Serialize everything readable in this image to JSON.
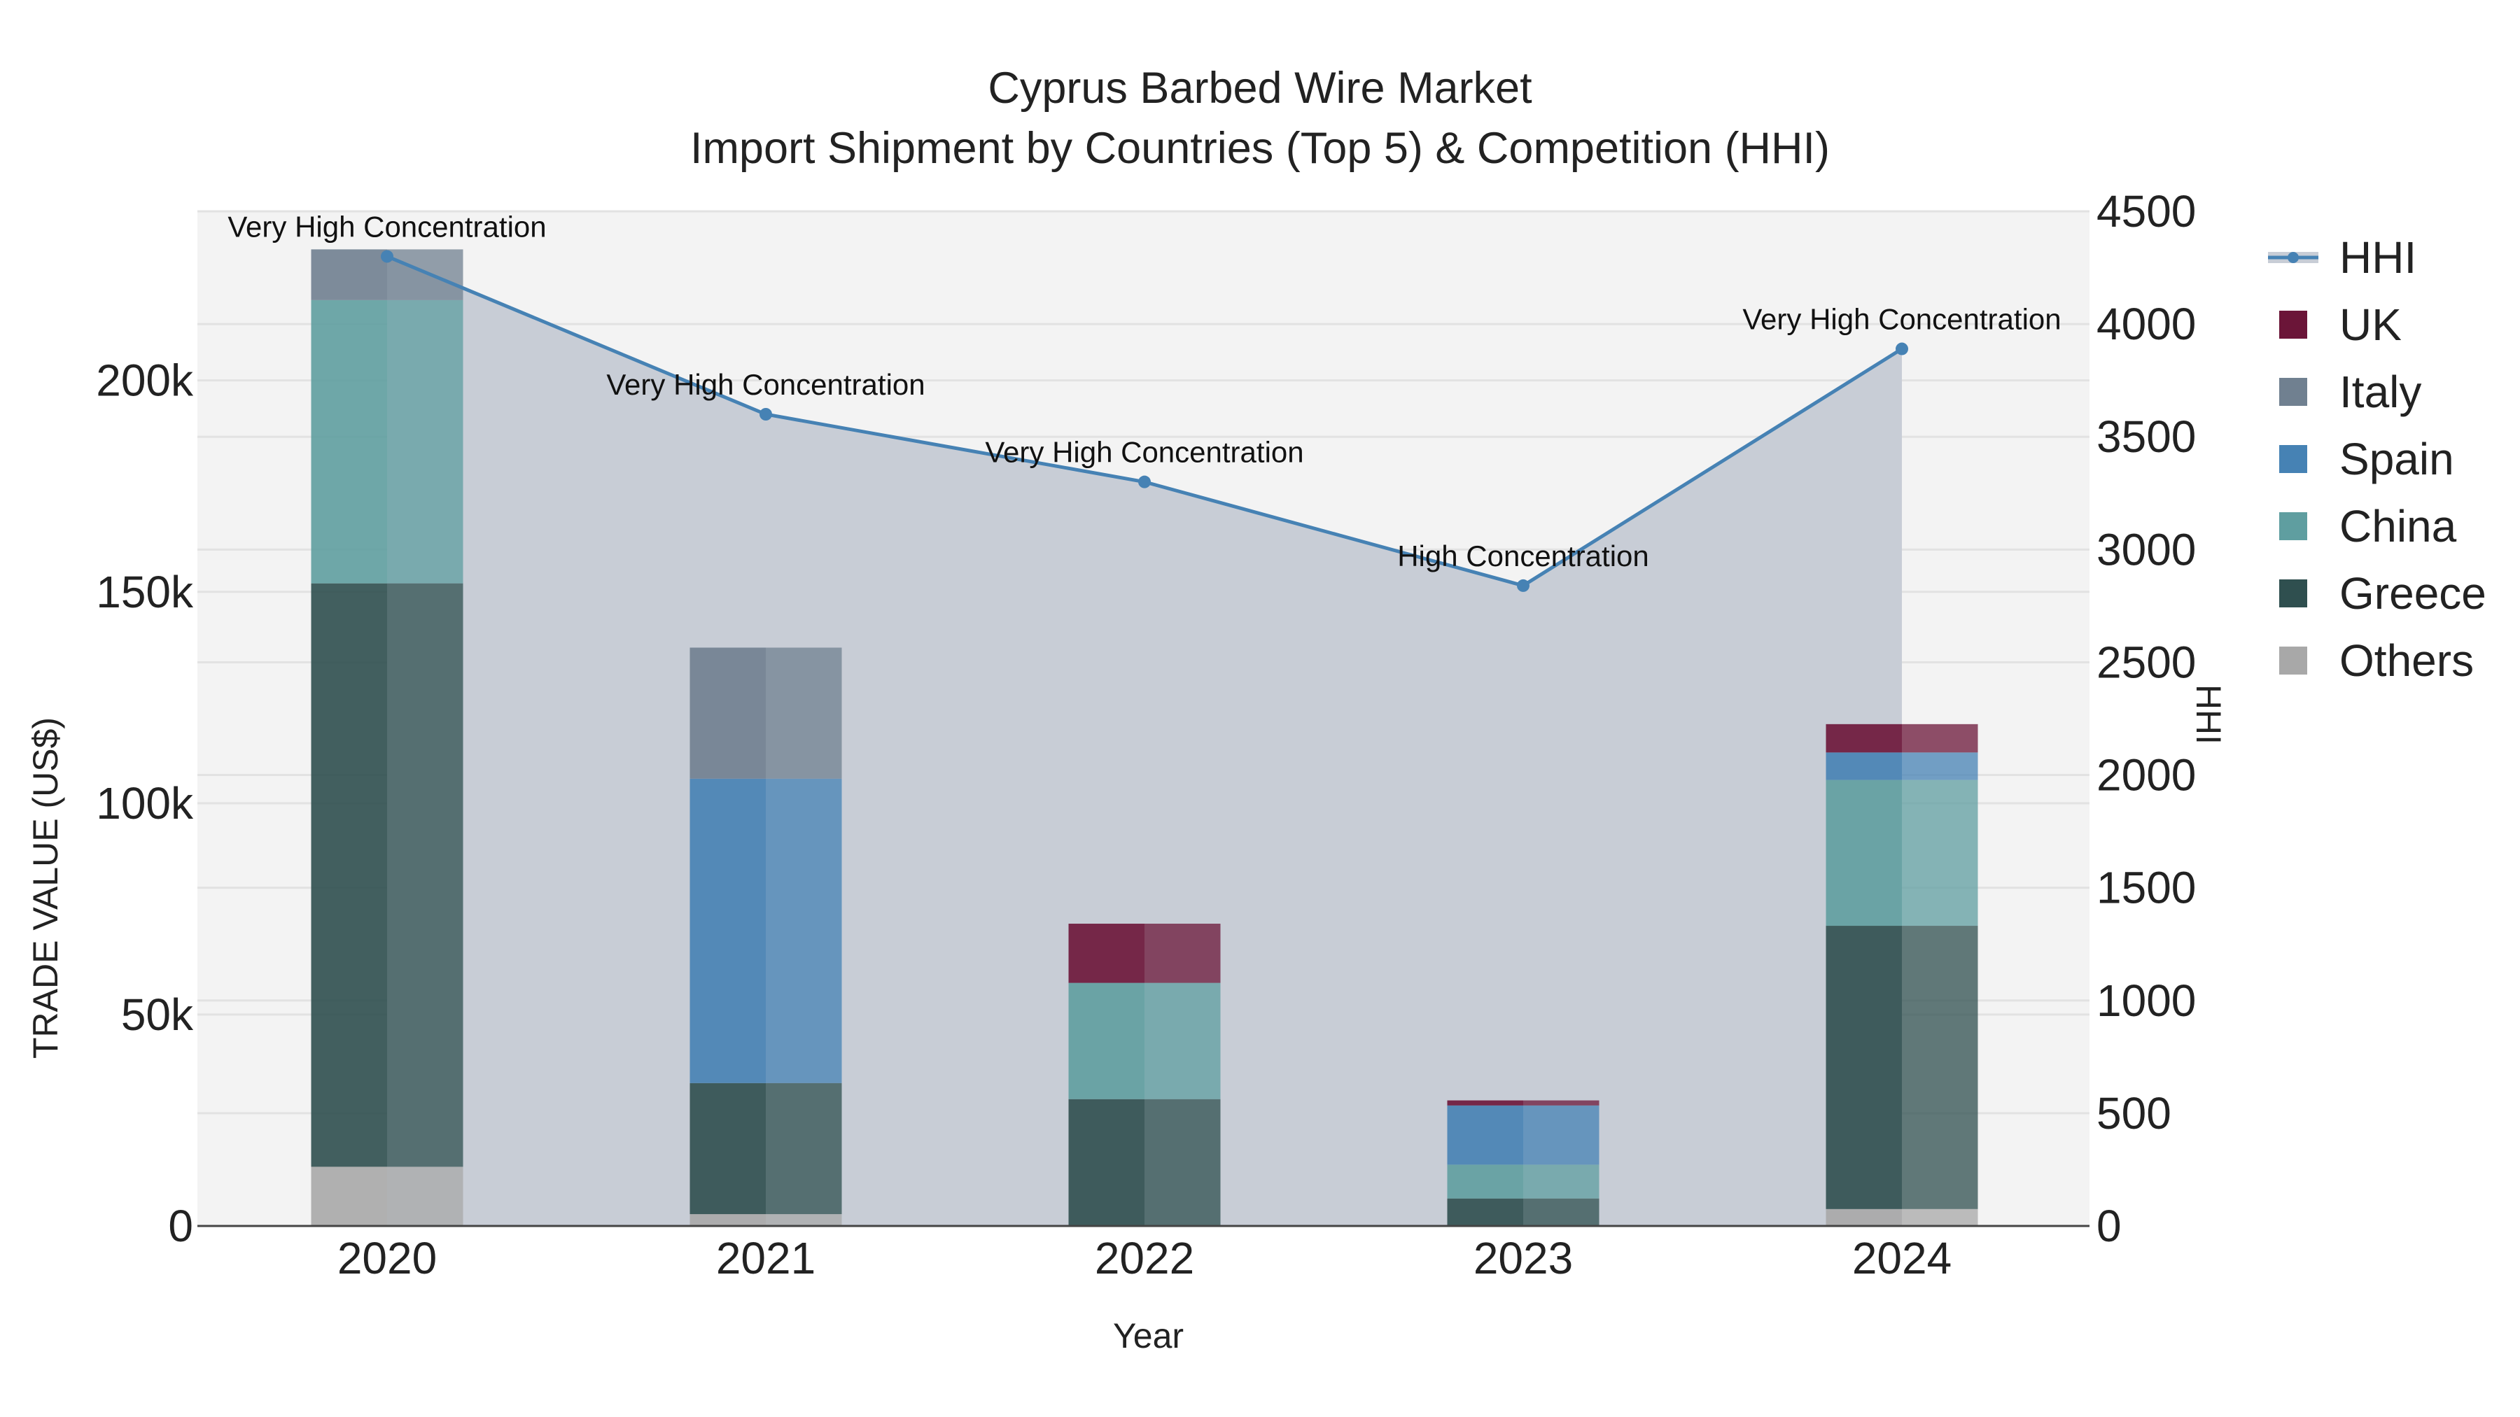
{
  "chart_data": {
    "type": "bar",
    "title": "Cyprus Barbed Wire Market",
    "subtitle": "Import Shipment by Countries (Top 5) & Competition (HHI)",
    "xlabel": "Year",
    "ylabel": "TRADE VALUE (US$)",
    "y2label": "HHI",
    "categories": [
      "2020",
      "2021",
      "2022",
      "2023",
      "2024"
    ],
    "ylim": [
      0,
      240000
    ],
    "y2lim": [
      0,
      4500
    ],
    "yticks": [
      "0",
      "50k",
      "100k",
      "150k",
      "200k"
    ],
    "y2ticks": [
      "0",
      "500",
      "1000",
      "1500",
      "2000",
      "2500",
      "3000",
      "3500",
      "4000",
      "4500"
    ],
    "stacked": true,
    "grid": true,
    "legend_position": "right",
    "series": [
      {
        "name": "Others",
        "color": "#A8A8A8",
        "values": [
          14000,
          2800,
          0,
          0,
          4000
        ]
      },
      {
        "name": "Greece",
        "color": "#2F4F4F",
        "values": [
          138000,
          31000,
          30000,
          6500,
          67000
        ]
      },
      {
        "name": "China",
        "color": "#5F9EA0",
        "values": [
          67000,
          0,
          27500,
          8000,
          34500
        ]
      },
      {
        "name": "Spain",
        "color": "#4682B4",
        "values": [
          0,
          72000,
          0,
          14000,
          6500
        ]
      },
      {
        "name": "Italy",
        "color": "#708090",
        "values": [
          12000,
          31000,
          0,
          0,
          0
        ]
      },
      {
        "name": "UK",
        "color": "#6B1538",
        "values": [
          0,
          0,
          14000,
          1200,
          6700
        ]
      }
    ],
    "hhi": {
      "name": "HHI",
      "color": "#4682B4",
      "values": [
        4300,
        3600,
        3300,
        2840,
        3890
      ],
      "labels": [
        "Very High Concentration",
        "Very High Concentration",
        "Very High Concentration",
        "High Concentration",
        "Very High Concentration"
      ]
    },
    "legend": [
      "HHI",
      "UK",
      "Italy",
      "Spain",
      "China",
      "Greece",
      "Others"
    ]
  }
}
